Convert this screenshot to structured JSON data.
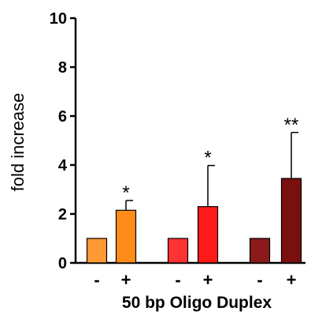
{
  "chart_data": {
    "type": "bar",
    "title": "",
    "xlabel": "50 bp Oligo Duplex",
    "ylabel": "fold increase",
    "ylim": [
      0,
      10
    ],
    "yticks": [
      0,
      2,
      4,
      6,
      8,
      10
    ],
    "grid": false,
    "legend": "none",
    "categories": [
      "-",
      "+",
      "-",
      "+",
      "-",
      "+"
    ],
    "values": [
      1.0,
      2.15,
      1.0,
      2.3,
      1.0,
      3.45
    ],
    "error": [
      0.0,
      0.4,
      0.0,
      1.68,
      0.0,
      1.88
    ],
    "significance": [
      "",
      "*",
      "",
      "*",
      "",
      "**"
    ],
    "colors": [
      "#FF9933",
      "#FF8C1A",
      "#FF3333",
      "#FF1A1A",
      "#8B1A1A",
      "#7A0F0F"
    ]
  }
}
